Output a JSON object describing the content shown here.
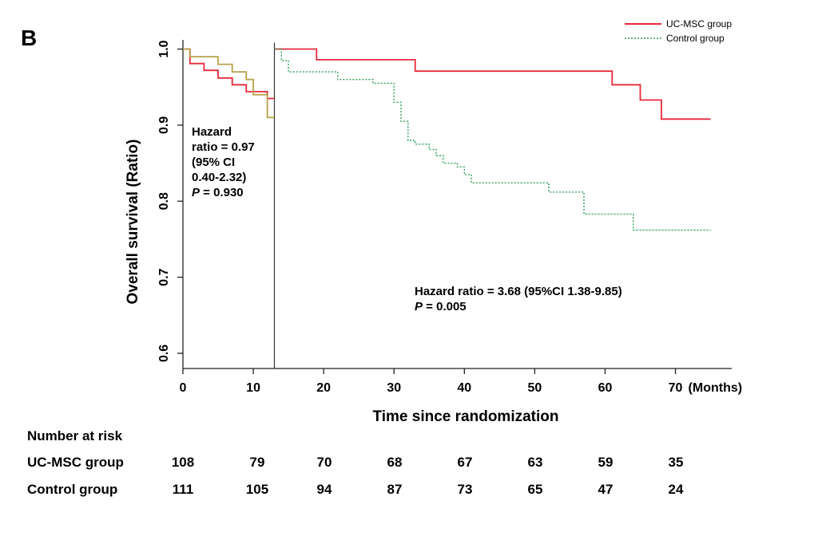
{
  "panel_label": "B",
  "colors": {
    "uc_msc": "#e8283a",
    "control": "#2f9e58",
    "early_control": "#b8a24a",
    "axis": "#222222",
    "text": "#111111"
  },
  "chart_data": {
    "type": "line",
    "subtype": "kaplan-meier step",
    "xlabel": "Time since randomization",
    "x_unit_label": "(Months)",
    "ylabel": "Overall survival (Ratio)",
    "xlim": [
      0,
      78
    ],
    "ylim": [
      0.58,
      1.01
    ],
    "x_ticks": [
      0,
      10,
      20,
      30,
      40,
      50,
      60,
      70
    ],
    "y_ticks": [
      0.6,
      0.7,
      0.8,
      0.9,
      1.0
    ],
    "y_tick_labels": [
      "0.6",
      "0.7",
      "0.8",
      "0.9",
      "1.0"
    ],
    "landmark_month": 13,
    "legend_position": "top-right",
    "series": [
      {
        "name": "UC-MSC group",
        "key": "uc_msc",
        "style": "solid",
        "segment": "early",
        "x": [
          0,
          1,
          1,
          3,
          3,
          5,
          5,
          7,
          7,
          9,
          9,
          12,
          12,
          13
        ],
        "y": [
          1.0,
          1.0,
          0.981,
          0.981,
          0.972,
          0.972,
          0.962,
          0.962,
          0.953,
          0.953,
          0.944,
          0.944,
          0.935,
          0.935
        ]
      },
      {
        "name": "Control group",
        "key": "early_control",
        "style": "solid",
        "segment": "early",
        "x": [
          0,
          1,
          1,
          5,
          5,
          7,
          7,
          9,
          9,
          10,
          10,
          12,
          12,
          13
        ],
        "y": [
          1.0,
          1.0,
          0.99,
          0.99,
          0.98,
          0.98,
          0.97,
          0.97,
          0.96,
          0.96,
          0.94,
          0.94,
          0.91,
          0.91
        ]
      },
      {
        "name": "UC-MSC group",
        "key": "uc_msc",
        "style": "solid",
        "segment": "late",
        "x": [
          13,
          19,
          19,
          33,
          33,
          61,
          61,
          65,
          65,
          68,
          68,
          75
        ],
        "y": [
          1.0,
          1.0,
          0.986,
          0.986,
          0.971,
          0.971,
          0.953,
          0.953,
          0.933,
          0.933,
          0.908,
          0.908
        ]
      },
      {
        "name": "Control group",
        "key": "control",
        "style": "dotted",
        "segment": "late",
        "x": [
          13,
          14,
          14,
          15,
          15,
          22,
          22,
          27,
          27,
          30,
          30,
          31,
          31,
          32,
          32,
          33,
          33,
          35,
          35,
          36,
          36,
          37,
          37,
          39,
          39,
          40,
          40,
          41,
          41,
          52,
          52,
          57,
          57,
          64,
          64,
          75
        ],
        "y": [
          1.0,
          1.0,
          0.985,
          0.985,
          0.97,
          0.97,
          0.96,
          0.96,
          0.955,
          0.955,
          0.93,
          0.93,
          0.905,
          0.905,
          0.88,
          0.88,
          0.875,
          0.875,
          0.868,
          0.868,
          0.86,
          0.86,
          0.85,
          0.85,
          0.845,
          0.845,
          0.835,
          0.835,
          0.824,
          0.824,
          0.812,
          0.812,
          0.783,
          0.783,
          0.762,
          0.762
        ]
      }
    ],
    "annotations": {
      "early": [
        "Hazard",
        "ratio = 0.97",
        "(95% CI",
        " 0.40-2.32)",
        "P = 0.930"
      ],
      "late": [
        "Hazard ratio = 3.68 (95%CI 1.38-9.85)",
        "P = 0.005"
      ]
    }
  },
  "risk_table": {
    "title": "Number at risk",
    "rows": [
      {
        "label": "UC-MSC  group",
        "values": [
          "108",
          "79",
          "70",
          "68",
          "67",
          "63",
          "59",
          "35"
        ]
      },
      {
        "label": "Control group",
        "values": [
          "111",
          "105",
          "94",
          "87",
          "73",
          "65",
          "47",
          "24"
        ]
      }
    ]
  }
}
